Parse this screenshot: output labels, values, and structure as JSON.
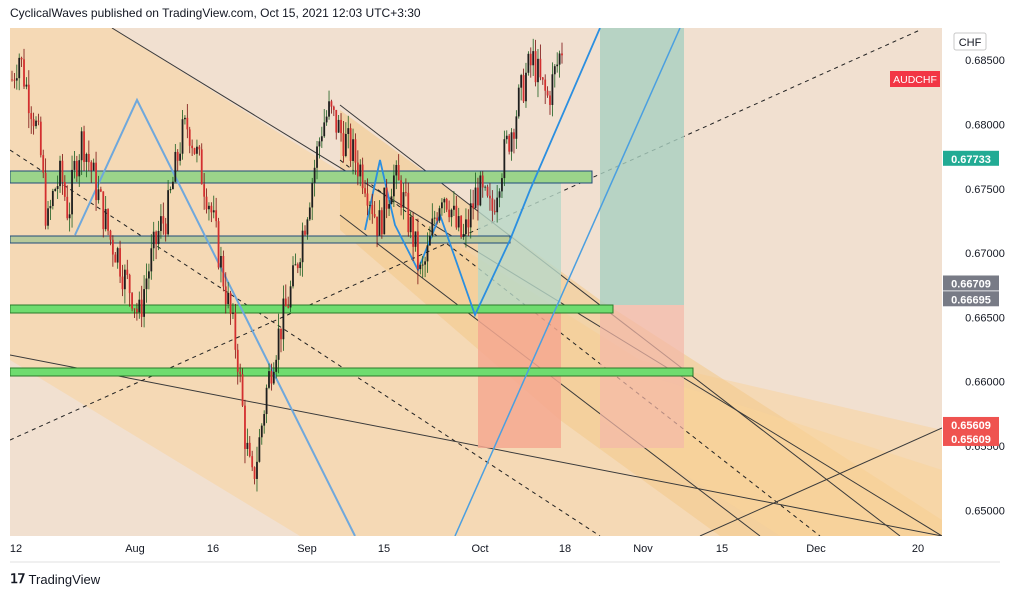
{
  "header": {
    "text": "CyclicalWaves published on TradingView.com, Oct 15, 2021 12:03 UTC+3:30"
  },
  "footer": {
    "logo_icon": "tradingview-logo-icon",
    "brand": "TradingView"
  },
  "colors": {
    "candle_up": "#26a69a",
    "candle_down": "#ef5350",
    "symbol_badge": "#f23645",
    "last_price_badge": "#22ab94",
    "gray_badge": "#787b86",
    "pattern_line": "#2196f3",
    "zone_green": "#7ee07e"
  },
  "chart_data": {
    "type": "candlestick",
    "symbol": "AUDCHF",
    "currency": "CHF",
    "ylim": [
      0.648,
      0.6875
    ],
    "y_ticks": [
      0.65,
      0.655,
      0.66,
      0.665,
      0.67,
      0.675,
      0.68,
      0.685
    ],
    "y_tick_labels": [
      "0.65000",
      "0.65500",
      "0.66000",
      "0.66500",
      "0.67000",
      "0.67500",
      "0.68000",
      "0.68500"
    ],
    "x_tick_labels": [
      "12",
      "Aug",
      "16",
      "Sep",
      "15",
      "Oct",
      "18",
      "Nov",
      "15",
      "Dec",
      "20"
    ],
    "price_labels": [
      {
        "label": "0.67733",
        "value": 0.67733,
        "kind": "last"
      },
      {
        "label": "0.66709",
        "value": 0.66709,
        "kind": "gray"
      },
      {
        "label": "0.66695",
        "value": 0.66695,
        "kind": "gray"
      },
      {
        "label": "0.65609",
        "value": 0.65609,
        "kind": "red"
      },
      {
        "label": "0.65609",
        "value": 0.65609,
        "kind": "red"
      }
    ],
    "price_path": [
      0.6835,
      0.6855,
      0.683,
      0.681,
      0.678,
      0.672,
      0.675,
      0.676,
      0.673,
      0.677,
      0.679,
      0.677,
      0.675,
      0.673,
      0.671,
      0.67,
      0.668,
      0.667,
      0.665,
      0.668,
      0.67,
      0.672,
      0.673,
      0.676,
      0.679,
      0.68,
      0.678,
      0.676,
      0.674,
      0.671,
      0.668,
      0.665,
      0.662,
      0.656,
      0.652,
      0.655,
      0.659,
      0.662,
      0.664,
      0.666,
      0.668,
      0.671,
      0.674,
      0.677,
      0.68,
      0.681,
      0.68,
      0.679,
      0.678,
      0.677,
      0.676,
      0.674,
      0.672,
      0.674,
      0.676,
      0.675,
      0.673,
      0.671,
      0.668,
      0.67,
      0.673,
      0.675,
      0.674,
      0.672,
      0.671,
      0.673,
      0.675,
      0.674,
      0.673,
      0.676,
      0.678,
      0.68,
      0.682,
      0.684,
      0.685,
      0.683,
      0.682,
      0.684,
      0.686
    ]
  }
}
